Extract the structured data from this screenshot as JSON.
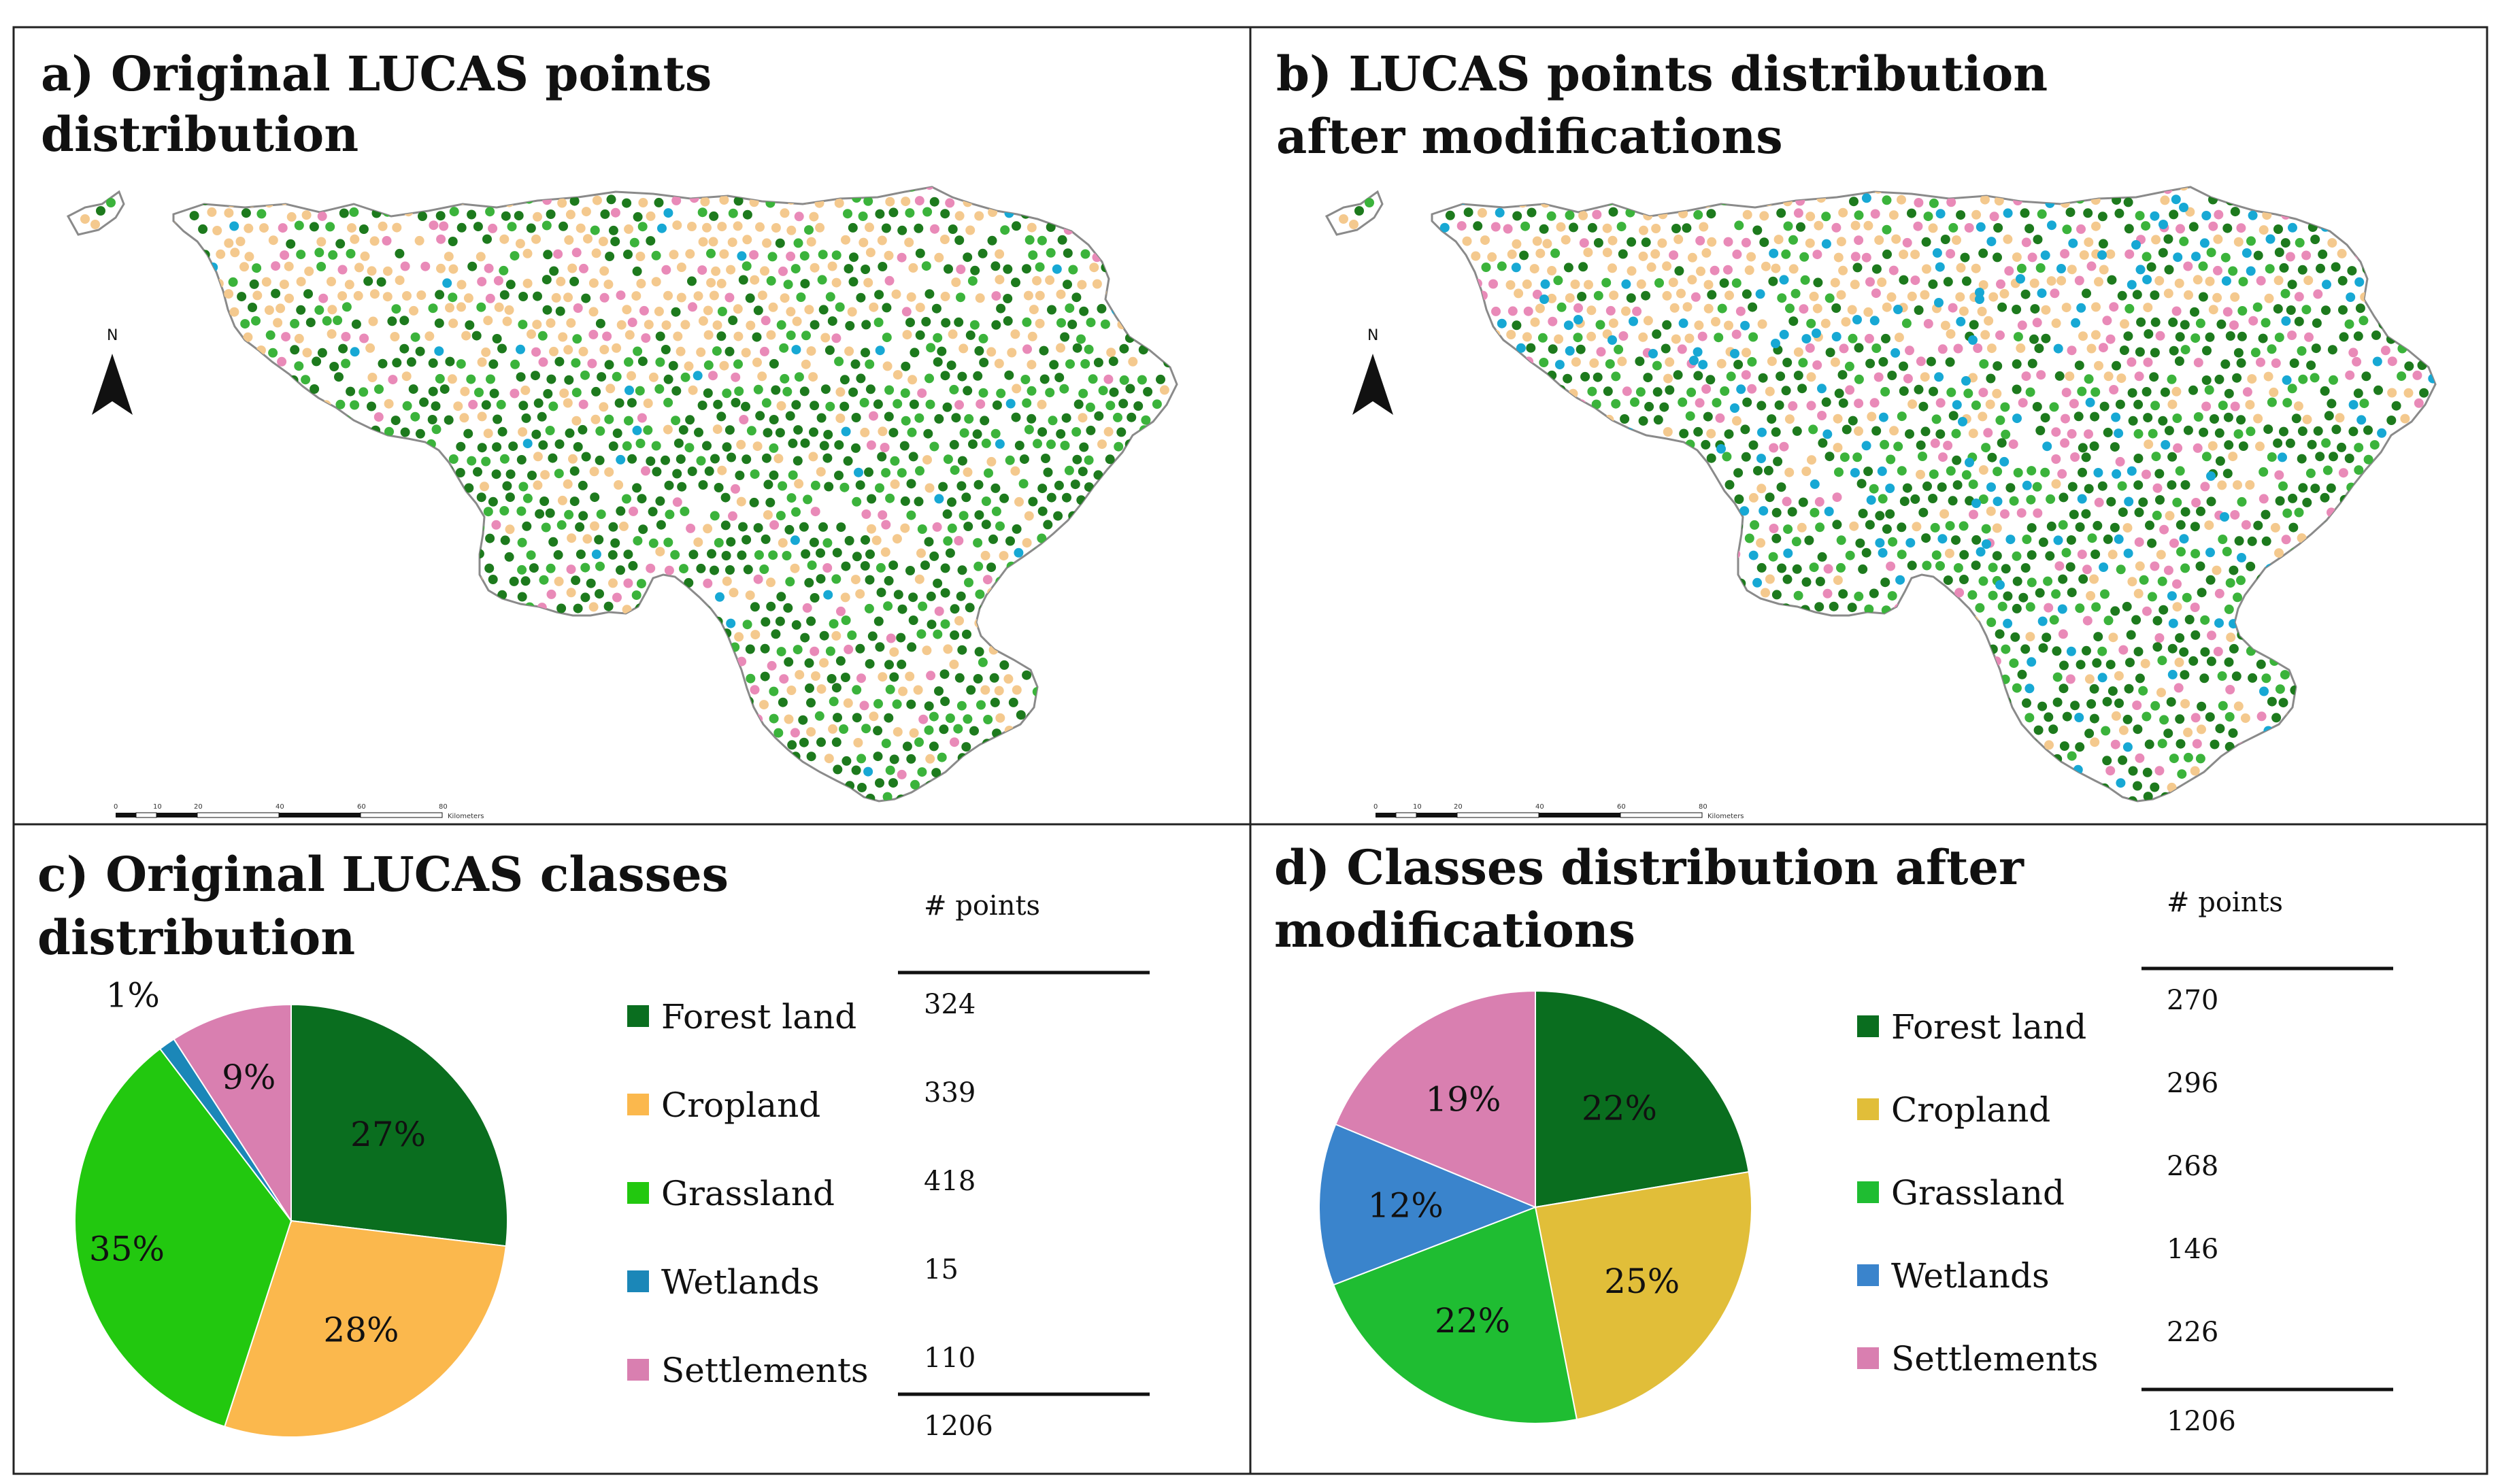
{
  "panels": {
    "a": {
      "title_line1": "a) Original LUCAS points",
      "title_line2": "distribution"
    },
    "b": {
      "title_line1": "b) LUCAS points distribution",
      "title_line2": "after modifications"
    },
    "c": {
      "title_line1": "c) Original LUCAS classes",
      "title_line2": "distribution"
    },
    "d": {
      "title_line1": "d) Classes distribution after",
      "title_line2": "modifications"
    }
  },
  "maps": {
    "north_label": "N",
    "scale_labels": [
      "0",
      "10",
      "20",
      "40",
      "60",
      "80",
      "Kilometers"
    ]
  },
  "table_header": "# points",
  "colors": {
    "forest": "#0a6e1f",
    "cropland_a": "#fbb84d",
    "cropland_d": "#e1be39",
    "grassland_a": "#22c80f",
    "grassland_d": "#1fbd32",
    "wetlands_a": "#1b87b8",
    "wetlands_d": "#3a84cc",
    "settlements": "#d97fb0",
    "map_crop": "#f4c98e",
    "map_forest": "#1d7a1d",
    "map_grass": "#3bb33b",
    "map_wet": "#17a8d4",
    "map_settle": "#e98ab8"
  },
  "chart_data": [
    {
      "type": "pie",
      "title": "c) Original LUCAS classes distribution",
      "categories": [
        "Forest land",
        "Cropland",
        "Grassland",
        "Wetlands",
        "Settlements"
      ],
      "values": [
        324,
        339,
        418,
        15,
        110
      ],
      "percent_labels": [
        "27%",
        "28%",
        "35%",
        "1%",
        "9%"
      ],
      "total": 1206,
      "total_label": "1206",
      "count_labels": [
        "324",
        "339",
        "418",
        "15",
        "110"
      ],
      "slice_colors": [
        "#0a6e1f",
        "#fbb84d",
        "#22c80f",
        "#1b87b8",
        "#d97fb0"
      ],
      "legend": "right",
      "start": "12 o'clock",
      "direction": "clockwise"
    },
    {
      "type": "pie",
      "title": "d) Classes distribution after modifications",
      "categories": [
        "Forest land",
        "Cropland",
        "Grassland",
        "Wetlands",
        "Settlements"
      ],
      "values": [
        270,
        296,
        268,
        146,
        226
      ],
      "percent_labels": [
        "22%",
        "25%",
        "22%",
        "12%",
        "19%"
      ],
      "total": 1206,
      "total_label": "1206",
      "count_labels": [
        "270",
        "296",
        "268",
        "146",
        "226"
      ],
      "slice_colors": [
        "#0a6e1f",
        "#e1be39",
        "#1fbd32",
        "#3a84cc",
        "#d97fb0"
      ],
      "legend": "right",
      "start": "12 o'clock",
      "direction": "clockwise"
    }
  ]
}
